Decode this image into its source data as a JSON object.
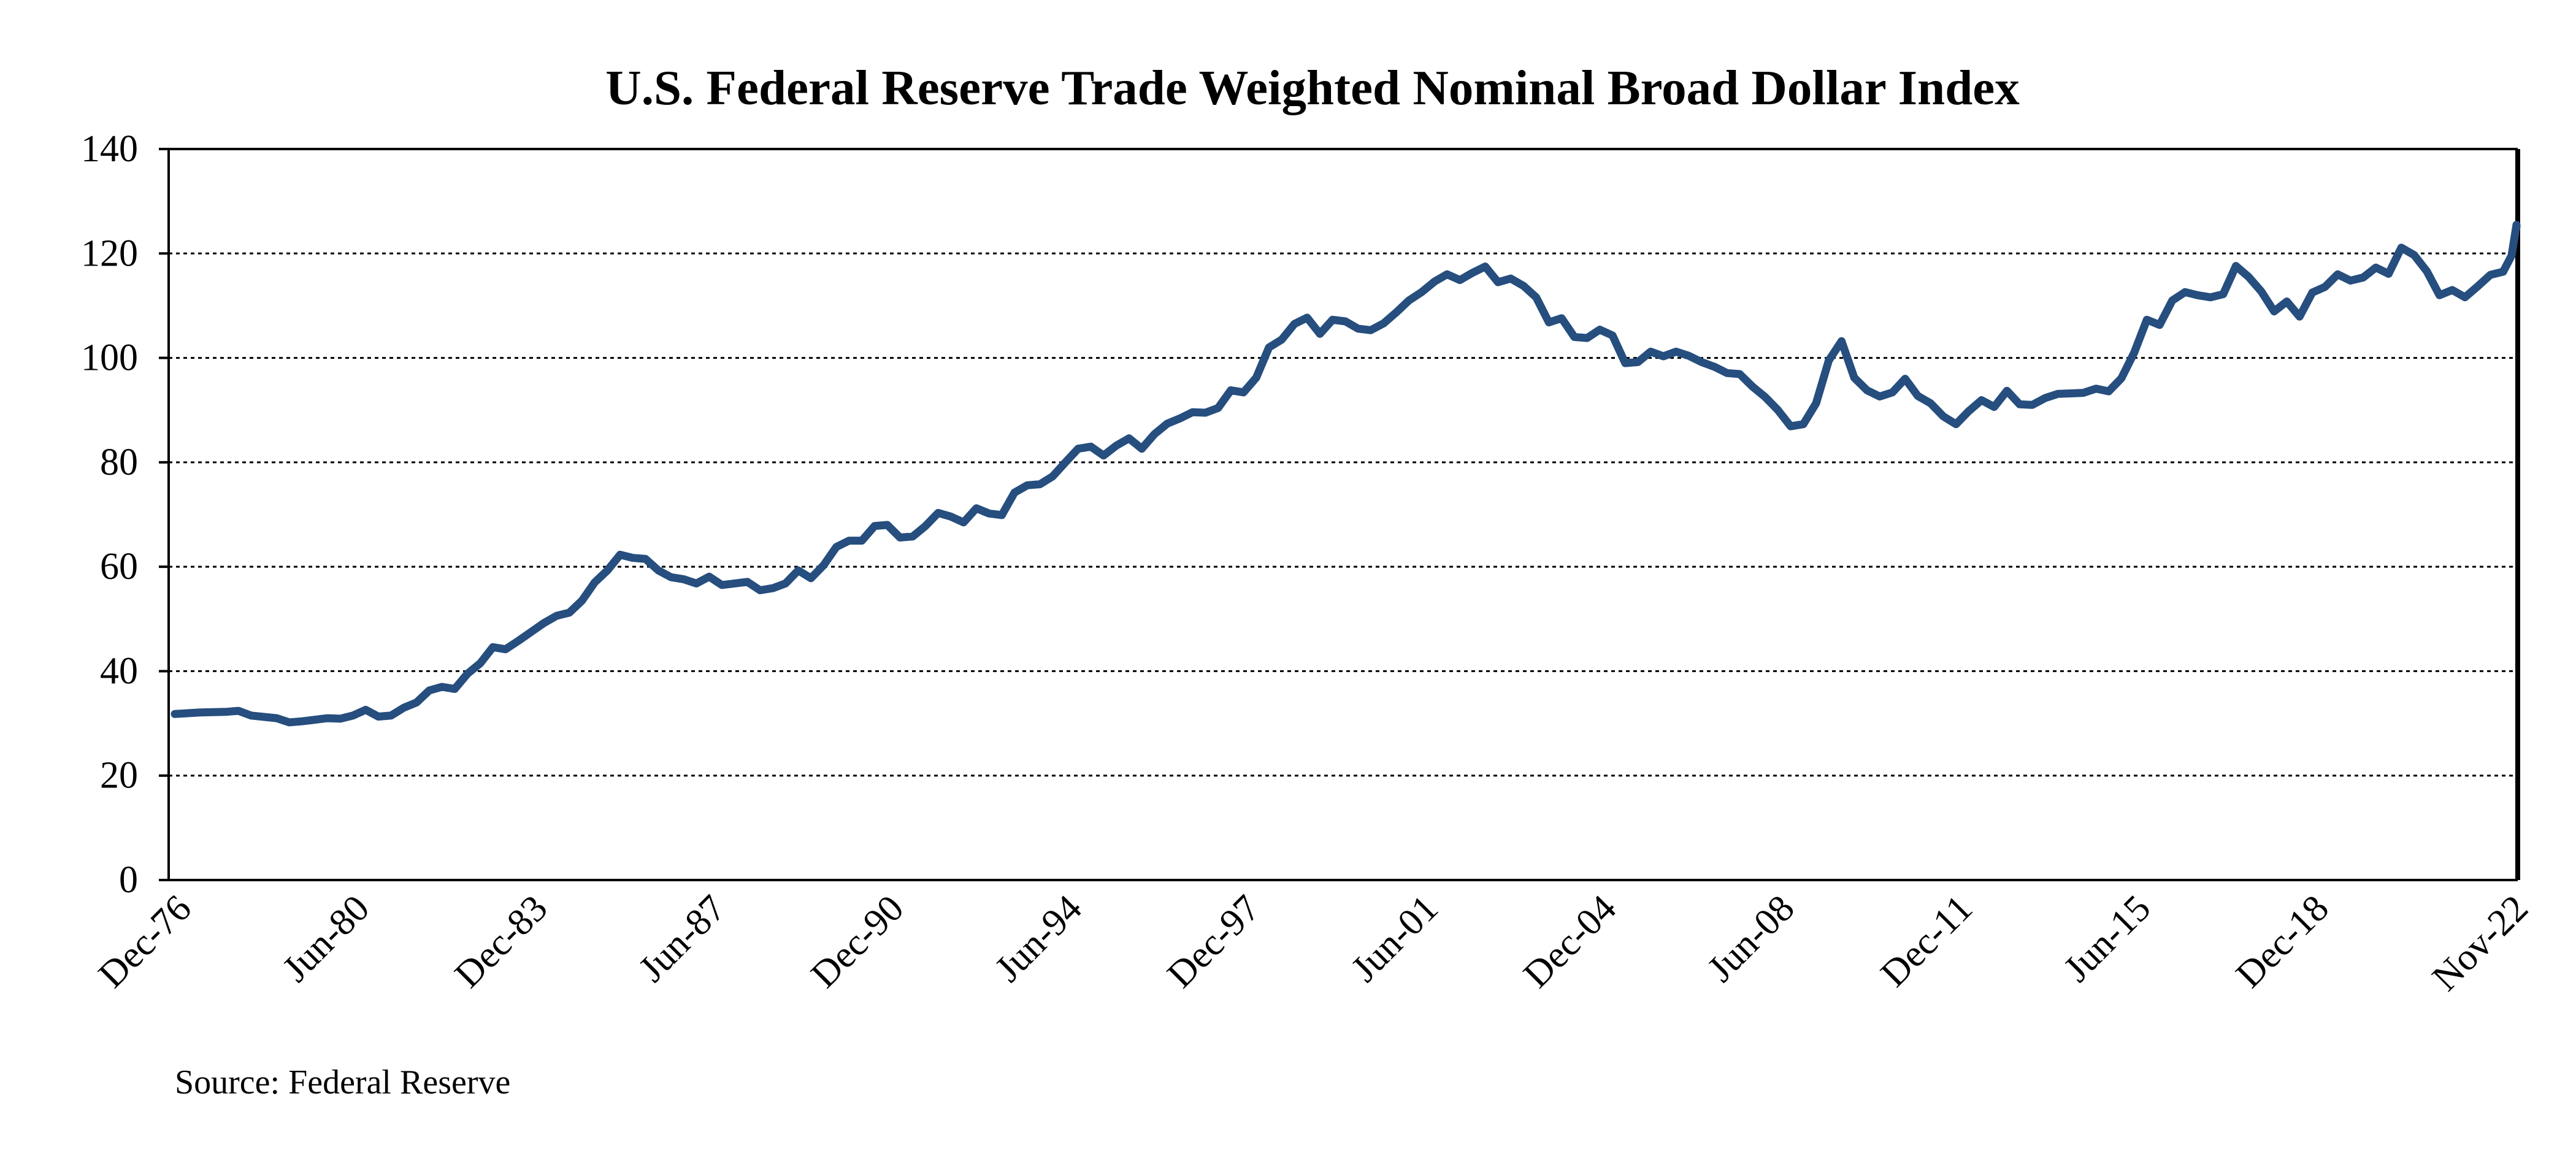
{
  "chart_data": {
    "type": "line",
    "title": "U.S. Federal Reserve Trade Weighted Nominal Broad Dollar Index",
    "xlabel": "",
    "ylabel": "",
    "ylim": [
      0,
      140
    ],
    "yticks": [
      0,
      20,
      40,
      60,
      80,
      100,
      120,
      140
    ],
    "grid": true,
    "x_range": [
      "1976-12",
      "2022-11"
    ],
    "x_tick_labels": [
      "Dec-76",
      "Jun-80",
      "Dec-83",
      "Jun-87",
      "Dec-90",
      "Jun-94",
      "Dec-97",
      "Jun-01",
      "Dec-04",
      "Jun-08",
      "Dec-11",
      "Jun-15",
      "Dec-18",
      "Nov-22"
    ],
    "x_tick_dates": [
      "1976-12",
      "1980-06",
      "1983-12",
      "1987-06",
      "1990-12",
      "1994-06",
      "1997-12",
      "2001-06",
      "2004-12",
      "2008-06",
      "2011-12",
      "2015-06",
      "2018-12",
      "2022-11"
    ],
    "series": [
      {
        "color": "#264e7e",
        "points": [
          [
            "1976-12",
            31.8
          ],
          [
            "1977-06",
            32.1
          ],
          [
            "1977-12",
            32.2
          ],
          [
            "1978-03",
            32.4
          ],
          [
            "1978-06",
            31.5
          ],
          [
            "1978-12",
            31.0
          ],
          [
            "1979-03",
            30.2
          ],
          [
            "1979-06",
            30.4
          ],
          [
            "1979-12",
            31.0
          ],
          [
            "1980-03",
            30.9
          ],
          [
            "1980-06",
            31.5
          ],
          [
            "1980-09",
            32.6
          ],
          [
            "1980-12",
            31.3
          ],
          [
            "1981-03",
            31.5
          ],
          [
            "1981-06",
            33.0
          ],
          [
            "1981-09",
            34.0
          ],
          [
            "1981-12",
            36.3
          ],
          [
            "1982-03",
            37.0
          ],
          [
            "1982-06",
            36.6
          ],
          [
            "1982-09",
            39.5
          ],
          [
            "1982-12",
            41.5
          ],
          [
            "1983-03",
            44.6
          ],
          [
            "1983-06",
            44.2
          ],
          [
            "1983-09",
            45.8
          ],
          [
            "1983-12",
            47.5
          ],
          [
            "1984-03",
            49.2
          ],
          [
            "1984-06",
            50.6
          ],
          [
            "1984-09",
            51.2
          ],
          [
            "1984-12",
            53.5
          ],
          [
            "1985-03",
            57.0
          ],
          [
            "1985-06",
            59.3
          ],
          [
            "1985-09",
            62.3
          ],
          [
            "1985-12",
            61.7
          ],
          [
            "1986-03",
            61.5
          ],
          [
            "1986-06",
            59.3
          ],
          [
            "1986-09",
            58.0
          ],
          [
            "1986-12",
            57.6
          ],
          [
            "1987-03",
            56.8
          ],
          [
            "1987-06",
            58.1
          ],
          [
            "1987-09",
            56.5
          ],
          [
            "1987-12",
            56.8
          ],
          [
            "1988-03",
            57.1
          ],
          [
            "1988-06",
            55.5
          ],
          [
            "1988-09",
            55.9
          ],
          [
            "1988-12",
            56.8
          ],
          [
            "1989-03",
            59.3
          ],
          [
            "1989-06",
            57.8
          ],
          [
            "1989-09",
            60.3
          ],
          [
            "1989-12",
            63.8
          ],
          [
            "1990-03",
            65.0
          ],
          [
            "1990-06",
            65.0
          ],
          [
            "1990-09",
            67.8
          ],
          [
            "1990-12",
            68.0
          ],
          [
            "1991-03",
            65.6
          ],
          [
            "1991-06",
            65.8
          ],
          [
            "1991-09",
            67.8
          ],
          [
            "1991-12",
            70.3
          ],
          [
            "1992-03",
            69.6
          ],
          [
            "1992-06",
            68.5
          ],
          [
            "1992-09",
            71.2
          ],
          [
            "1992-12",
            70.2
          ],
          [
            "1993-03",
            69.9
          ],
          [
            "1993-06",
            74.2
          ],
          [
            "1993-09",
            75.6
          ],
          [
            "1993-12",
            75.8
          ],
          [
            "1994-03",
            77.3
          ],
          [
            "1994-06",
            80.0
          ],
          [
            "1994-09",
            82.6
          ],
          [
            "1994-12",
            83.0
          ],
          [
            "1995-03",
            81.3
          ],
          [
            "1995-06",
            83.2
          ],
          [
            "1995-09",
            84.6
          ],
          [
            "1995-12",
            82.6
          ],
          [
            "1996-03",
            85.4
          ],
          [
            "1996-06",
            87.4
          ],
          [
            "1996-09",
            88.4
          ],
          [
            "1996-12",
            89.6
          ],
          [
            "1997-03",
            89.5
          ],
          [
            "1997-06",
            90.4
          ],
          [
            "1997-09",
            93.8
          ],
          [
            "1997-12",
            93.4
          ],
          [
            "1998-03",
            96.2
          ],
          [
            "1998-06",
            102.0
          ],
          [
            "1998-09",
            103.5
          ],
          [
            "1998-12",
            106.5
          ],
          [
            "1999-03",
            107.7
          ],
          [
            "1999-06",
            104.6
          ],
          [
            "1999-09",
            107.3
          ],
          [
            "1999-12",
            107.0
          ],
          [
            "2000-03",
            105.6
          ],
          [
            "2000-06",
            105.3
          ],
          [
            "2000-09",
            106.6
          ],
          [
            "2000-12",
            108.7
          ],
          [
            "2001-03",
            111.0
          ],
          [
            "2001-06",
            112.6
          ],
          [
            "2001-09",
            114.6
          ],
          [
            "2001-12",
            116.0
          ],
          [
            "2002-03",
            114.9
          ],
          [
            "2002-06",
            116.3
          ],
          [
            "2002-09",
            117.5
          ],
          [
            "2002-12",
            114.5
          ],
          [
            "2003-03",
            115.2
          ],
          [
            "2003-06",
            113.8
          ],
          [
            "2003-09",
            111.6
          ],
          [
            "2003-12",
            106.8
          ],
          [
            "2004-03",
            107.6
          ],
          [
            "2004-06",
            104.0
          ],
          [
            "2004-09",
            103.8
          ],
          [
            "2004-12",
            105.4
          ],
          [
            "2005-03",
            104.3
          ],
          [
            "2005-06",
            99.0
          ],
          [
            "2005-09",
            99.2
          ],
          [
            "2005-12",
            101.2
          ],
          [
            "2006-03",
            100.3
          ],
          [
            "2006-06",
            101.2
          ],
          [
            "2006-09",
            100.4
          ],
          [
            "2006-12",
            99.2
          ],
          [
            "2007-03",
            98.3
          ],
          [
            "2007-06",
            97.1
          ],
          [
            "2007-09",
            96.9
          ],
          [
            "2007-12",
            94.5
          ],
          [
            "2008-03",
            92.5
          ],
          [
            "2008-06",
            90.0
          ],
          [
            "2008-09",
            86.9
          ],
          [
            "2008-12",
            87.3
          ],
          [
            "2009-03",
            91.3
          ],
          [
            "2009-06",
            99.5
          ],
          [
            "2009-09",
            103.2
          ],
          [
            "2009-12",
            96.2
          ],
          [
            "2010-03",
            93.8
          ],
          [
            "2010-06",
            92.6
          ],
          [
            "2010-09",
            93.4
          ],
          [
            "2010-12",
            96.0
          ],
          [
            "2011-03",
            92.7
          ],
          [
            "2011-06",
            91.3
          ],
          [
            "2011-09",
            88.8
          ],
          [
            "2011-12",
            87.3
          ],
          [
            "2012-03",
            89.8
          ],
          [
            "2012-06",
            91.9
          ],
          [
            "2012-09",
            90.6
          ],
          [
            "2012-12",
            93.7
          ],
          [
            "2013-03",
            91.1
          ],
          [
            "2013-06",
            91.0
          ],
          [
            "2013-09",
            92.3
          ],
          [
            "2013-12",
            93.1
          ],
          [
            "2014-03",
            93.2
          ],
          [
            "2014-06",
            93.3
          ],
          [
            "2014-09",
            94.1
          ],
          [
            "2014-12",
            93.6
          ],
          [
            "2015-03",
            96.1
          ],
          [
            "2015-06",
            101.0
          ],
          [
            "2015-09",
            107.3
          ],
          [
            "2015-12",
            106.3
          ],
          [
            "2016-03",
            111.0
          ],
          [
            "2016-06",
            112.6
          ],
          [
            "2016-09",
            112.0
          ],
          [
            "2016-12",
            111.6
          ],
          [
            "2017-03",
            112.2
          ],
          [
            "2017-06",
            117.6
          ],
          [
            "2017-09",
            115.5
          ],
          [
            "2017-12",
            112.7
          ],
          [
            "2018-03",
            108.9
          ],
          [
            "2018-06",
            110.8
          ],
          [
            "2018-09",
            107.9
          ],
          [
            "2018-12",
            112.5
          ],
          [
            "2019-03",
            113.6
          ],
          [
            "2019-06",
            116.0
          ],
          [
            "2019-09",
            114.8
          ],
          [
            "2019-12",
            115.4
          ],
          [
            "2020-03",
            117.3
          ],
          [
            "2020-06",
            116.1
          ],
          [
            "2020-09",
            121.1
          ],
          [
            "2020-12",
            119.7
          ],
          [
            "2021-03",
            116.6
          ],
          [
            "2021-06",
            112.0
          ],
          [
            "2021-09",
            113.0
          ],
          [
            "2021-12",
            111.6
          ],
          [
            "2022-03",
            113.7
          ],
          [
            "2022-06",
            115.9
          ],
          [
            "2022-09",
            116.5
          ],
          [
            "2022-11",
            119.6
          ],
          [
            "2023-02",
            125.5
          ],
          [
            "2023-05",
            125.0
          ]
        ]
      }
    ],
    "source": "Source: Federal Reserve"
  }
}
